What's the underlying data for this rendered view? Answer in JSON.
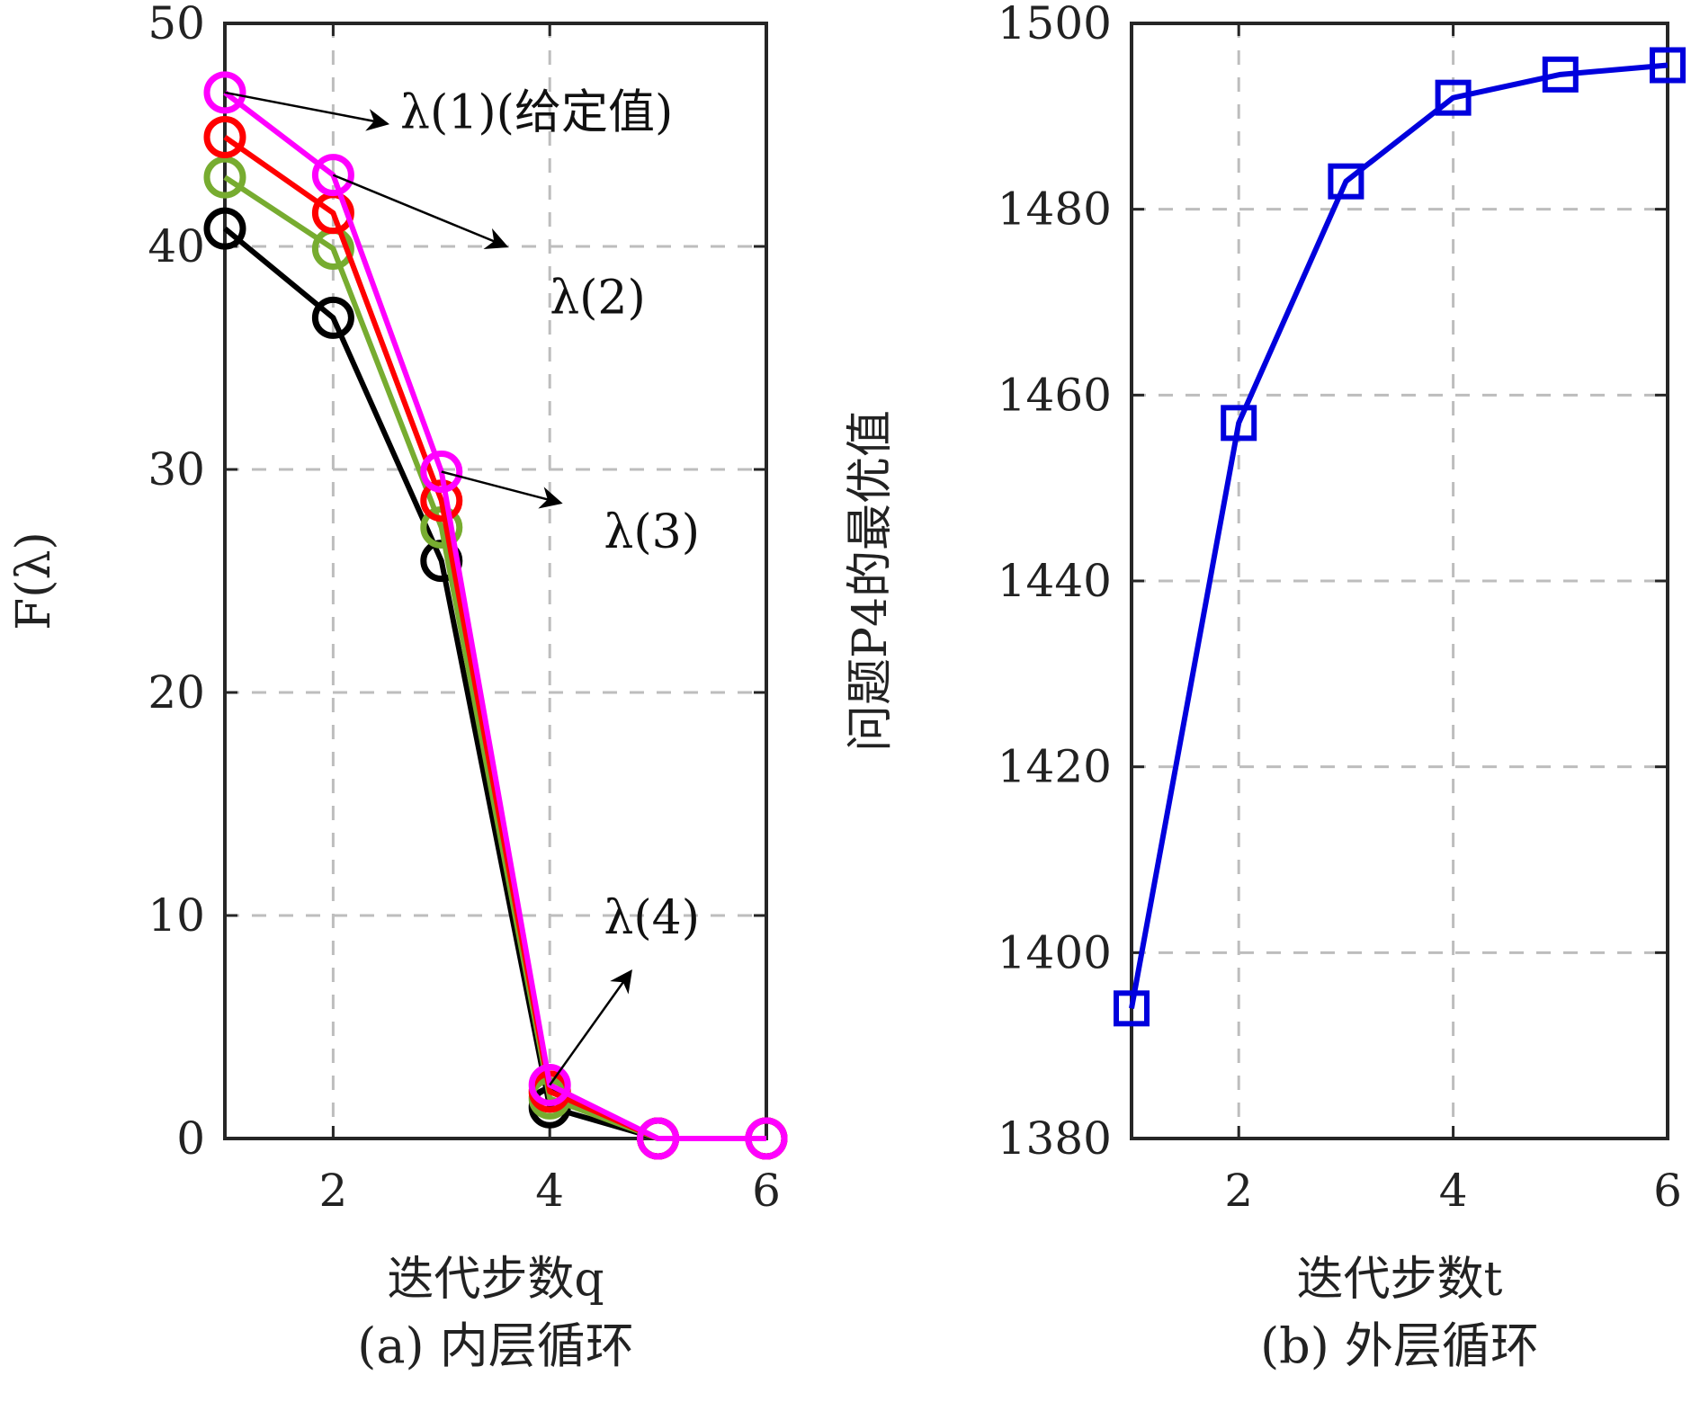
{
  "chart_data": [
    {
      "type": "line",
      "ylabel": "F(λ)",
      "xlabel": "迭代步数q",
      "caption": "(a) 内层循环",
      "xlim": [
        1,
        6
      ],
      "ylim": [
        0,
        50
      ],
      "xticks": [
        2,
        4,
        6
      ],
      "yticks": [
        0,
        10,
        20,
        30,
        40,
        50
      ],
      "grid": true,
      "x": [
        1,
        2,
        3,
        4,
        5,
        6
      ],
      "series": [
        {
          "color": "#000000",
          "marker": "circle",
          "values": [
            40.8,
            36.8,
            25.9,
            1.4,
            0,
            0
          ]
        },
        {
          "color": "#77ac30",
          "marker": "circle",
          "values": [
            43.1,
            39.9,
            27.4,
            1.8,
            0,
            0
          ]
        },
        {
          "color": "#ff0000",
          "marker": "circle",
          "values": [
            44.9,
            41.5,
            28.6,
            2.1,
            0,
            0
          ]
        },
        {
          "color": "#ff00ff",
          "marker": "circle",
          "values": [
            46.9,
            43.2,
            29.9,
            2.4,
            0,
            0
          ]
        }
      ],
      "annotations": [
        {
          "text": "λ(1)(给定值)",
          "x": 1.0,
          "y": 46.9,
          "tx": 2.5,
          "ty": 45.5,
          "lx": 2.62,
          "ly": 45.3
        },
        {
          "text": "λ(2)",
          "x": 2.0,
          "y": 43.2,
          "tx": 3.6,
          "ty": 40.0,
          "lx": 4.0,
          "ly": 37.0
        },
        {
          "text": "λ(3)",
          "x": 3.0,
          "y": 29.9,
          "tx": 4.1,
          "ty": 28.5,
          "lx": 4.5,
          "ly": 26.5
        },
        {
          "text": "λ(4)",
          "x": 4.0,
          "y": 2.4,
          "tx": 4.75,
          "ty": 7.5,
          "lx": 4.5,
          "ly": 9.2
        }
      ]
    },
    {
      "type": "line",
      "ylabel": "问题P4的最优值",
      "xlabel": "迭代步数t",
      "caption": "(b) 外层循环",
      "xlim": [
        1,
        6
      ],
      "ylim": [
        1380,
        1500
      ],
      "xticks": [
        2,
        4,
        6
      ],
      "yticks": [
        1380,
        1400,
        1420,
        1440,
        1460,
        1480,
        1500
      ],
      "grid": true,
      "x": [
        1,
        2,
        3,
        4,
        5,
        6
      ],
      "series": [
        {
          "color": "#0000dd",
          "marker": "square",
          "values": [
            1394,
            1457,
            1483,
            1492,
            1494.5,
            1495.5
          ]
        }
      ]
    }
  ]
}
